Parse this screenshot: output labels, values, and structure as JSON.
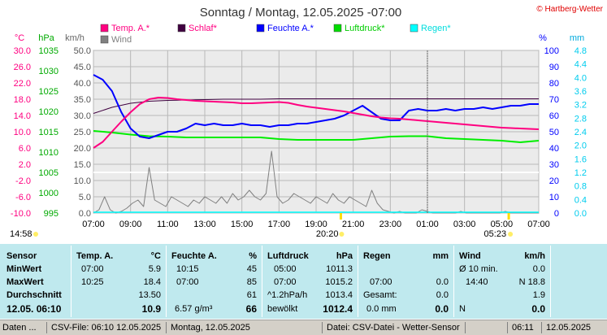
{
  "title": "Sonntag / Montag, 12.05.2025  -07:00",
  "copyright": "© Hartberg-Wetter",
  "colors": {
    "temp": "#ff0080",
    "schlaf": "#000000",
    "feuchte": "#0000ff",
    "luftdruck": "#00ee00",
    "regen": "#00ffff",
    "wind": "#808080",
    "hpa_axis": "#00aa00",
    "temp_axis": "#ff0080"
  },
  "units": {
    "temp": "°C",
    "hpa": "hPa",
    "kmh": "km/h",
    "pct": "%",
    "mm": "mm"
  },
  "legend": [
    {
      "label": "Temp. A.*",
      "color": "#ff0080"
    },
    {
      "label": "Schlaf*",
      "color": "#400040"
    },
    {
      "label": "Feuchte A.*",
      "color": "#0000ff"
    },
    {
      "label": "Luftdruck*",
      "color": "#00dd00"
    },
    {
      "label": "Regen*",
      "color": "#00ffff"
    },
    {
      "label": "Wind",
      "color": "#808080"
    }
  ],
  "axes": {
    "temp_ticks": [
      "30.0",
      "26.0",
      "22.0",
      "18.0",
      "14.0",
      "10.0",
      "6.0",
      "2.0",
      "-2.0",
      "-6.0",
      "-10.0"
    ],
    "hpa_ticks": [
      "1035",
      "1030",
      "1025",
      "1020",
      "1015",
      "1010",
      "1005",
      "1000",
      "995"
    ],
    "kmh_ticks": [
      "50.0",
      "45.0",
      "40.0",
      "35.0",
      "30.0",
      "25.0",
      "20.0",
      "15.0",
      "10.0",
      "5.0",
      "0.0"
    ],
    "pct_ticks": [
      "100",
      "90",
      "80",
      "70",
      "60",
      "50",
      "40",
      "30",
      "20",
      "10",
      "0"
    ],
    "mm_ticks": [
      "4.8",
      "4.4",
      "4.0",
      "3.6",
      "3.2",
      "2.8",
      "2.4",
      "2.0",
      "1.6",
      "1.2",
      "0.8",
      "0.4",
      "0.0"
    ],
    "time_ticks": [
      "07:00",
      "09:00",
      "11:00",
      "13:00",
      "15:00",
      "17:00",
      "19:00",
      "21:00",
      "23:00",
      "01:00",
      "03:00",
      "05:00",
      "07:00"
    ],
    "sunset": "20:20",
    "sunrise": "05:23",
    "moon": "14:58"
  },
  "chart_data": {
    "type": "line",
    "x_unit": "hours since 07:00",
    "xlim": [
      0,
      24
    ],
    "series": [
      {
        "name": "Temp. A.*",
        "unit": "°C",
        "axis": "temp",
        "x": [
          0,
          0.5,
          1,
          1.5,
          2,
          2.5,
          3,
          3.5,
          4,
          4.5,
          5,
          5.5,
          6,
          6.5,
          7,
          7.5,
          8,
          8.5,
          9,
          9.5,
          10,
          10.5,
          11,
          11.5,
          12,
          12.5,
          13,
          13.5,
          14,
          14.5,
          15,
          15.5,
          16,
          16.5,
          17,
          17.5,
          18,
          18.5,
          19,
          19.5,
          20,
          20.5,
          21,
          21.5,
          22,
          22.5,
          23,
          23.5,
          24
        ],
        "y": [
          6,
          7.5,
          10,
          12.5,
          14.8,
          16.8,
          18,
          18.4,
          18.3,
          18,
          17.8,
          17.6,
          17.5,
          17.4,
          17.3,
          17.2,
          17,
          17,
          17.1,
          17.2,
          17.3,
          17.1,
          16.6,
          16.2,
          15.9,
          15.6,
          15.3,
          15,
          14.6,
          14.2,
          13.8,
          13.5,
          13.3,
          13.2,
          13,
          12.8,
          12.6,
          12.4,
          12.2,
          12.0,
          11.8,
          11.6,
          11.4,
          11.2,
          11.0,
          10.9,
          10.8,
          10.7,
          10.6
        ]
      },
      {
        "name": "Schlaf*",
        "unit": "°C",
        "axis": "temp",
        "x": [
          0,
          1,
          2,
          3,
          4,
          5,
          6,
          7,
          8,
          9,
          10,
          11,
          12,
          13,
          14,
          15,
          16,
          17,
          18,
          19,
          20,
          21,
          22,
          23,
          24
        ],
        "y": [
          14.5,
          16,
          17,
          17.5,
          17.7,
          17.8,
          17.9,
          18,
          18,
          18,
          18.1,
          18.1,
          18.1,
          18.1,
          18.1,
          18.1,
          18.1,
          18.1,
          18.1,
          18.1,
          18.1,
          18.1,
          18.1,
          18.1,
          18.1
        ]
      },
      {
        "name": "Feuchte A.*",
        "unit": "%",
        "axis": "pct",
        "x": [
          0,
          0.5,
          1,
          1.5,
          2,
          2.5,
          3,
          3.5,
          4,
          4.5,
          5,
          5.5,
          6,
          6.5,
          7,
          7.5,
          8,
          8.5,
          9,
          9.5,
          10,
          10.5,
          11,
          11.5,
          12,
          12.5,
          13,
          13.5,
          14,
          14.5,
          15,
          15.5,
          16,
          16.5,
          17,
          17.5,
          18,
          18.5,
          19,
          19.5,
          20,
          20.5,
          21,
          21.5,
          22,
          22.5,
          23,
          23.5,
          24
        ],
        "y": [
          85,
          82,
          75,
          62,
          52,
          47,
          46,
          48,
          50,
          50,
          52,
          55,
          54,
          55,
          54,
          54,
          55,
          54,
          54,
          53,
          54,
          54,
          55,
          55,
          56,
          57,
          58,
          60,
          63,
          66,
          62,
          58,
          57,
          57,
          63,
          64,
          63,
          63,
          64,
          63,
          64,
          64,
          65,
          64,
          65,
          66,
          66,
          67,
          67
        ]
      },
      {
        "name": "Luftdruck*",
        "unit": "hPa",
        "axis": "hpa",
        "x": [
          0,
          1,
          2,
          3,
          4,
          5,
          6,
          7,
          8,
          9,
          10,
          11,
          12,
          13,
          14,
          15,
          16,
          17,
          18,
          19,
          20,
          21,
          22,
          23,
          24
        ],
        "y": [
          1015.2,
          1014.8,
          1014.3,
          1013.9,
          1013.8,
          1013.6,
          1013.6,
          1013.6,
          1013.6,
          1013.6,
          1013.2,
          1013,
          1013,
          1013,
          1013,
          1013.4,
          1013.8,
          1013.9,
          1013.9,
          1013.4,
          1013.2,
          1013,
          1012.8,
          1012.4,
          1012.8
        ]
      },
      {
        "name": "Wind",
        "unit": "km/h",
        "axis": "kmh",
        "x": [
          0,
          0.3,
          0.6,
          0.9,
          1.2,
          1.5,
          1.8,
          2.1,
          2.4,
          2.7,
          3,
          3.3,
          3.6,
          3.9,
          4.2,
          4.5,
          4.8,
          5.1,
          5.4,
          5.7,
          6,
          6.3,
          6.6,
          6.9,
          7.2,
          7.5,
          7.8,
          8.1,
          8.4,
          8.7,
          9,
          9.3,
          9.6,
          9.9,
          10.2,
          10.5,
          10.8,
          11.1,
          11.4,
          11.7,
          12,
          12.3,
          12.6,
          12.9,
          13.2,
          13.5,
          13.8,
          14.1,
          14.4,
          14.7,
          15,
          15.3,
          15.6,
          15.9,
          16.2,
          16.5,
          16.8,
          17.1,
          17.4,
          17.7,
          18,
          18.3,
          18.6,
          18.9,
          19.2,
          19.5,
          19.8,
          20.1,
          20.4,
          20.7,
          21,
          21.3,
          21.6,
          21.9,
          22.2,
          22.5,
          22.8,
          23.1,
          23.4,
          23.7,
          24
        ],
        "y": [
          0,
          1,
          5,
          1,
          0,
          0.5,
          1.5,
          3,
          4,
          2,
          14,
          4,
          3,
          2,
          5,
          4,
          3,
          2,
          4,
          3,
          5,
          4,
          3,
          5,
          3,
          6,
          4,
          5,
          7,
          5,
          4,
          6,
          19,
          5,
          3,
          4,
          6,
          5,
          4,
          3,
          5,
          4,
          3,
          6,
          4,
          3,
          5,
          4,
          3,
          2,
          7,
          3,
          1,
          0.5,
          0,
          0.5,
          0,
          0,
          0,
          1,
          0.5,
          0,
          0,
          0,
          0,
          0,
          0.5,
          0,
          0,
          0,
          0,
          0,
          0,
          0,
          0.5,
          0,
          0,
          0,
          0,
          0,
          0
        ]
      }
    ]
  },
  "table": {
    "sensor": {
      "header": "Sensor",
      "rows": [
        "MinWert",
        "MaxWert",
        "Durchschnitt"
      ],
      "footer": "12.05. 06:10"
    },
    "temp": {
      "header": "Temp. A.",
      "unit": "°C",
      "min_time": "07:00",
      "min": "5.9",
      "max_time": "10:25",
      "max": "18.4",
      "avg": "13.50",
      "current": "10.9"
    },
    "feuchte": {
      "header": "Feuchte A.",
      "unit": "%",
      "min_time": "10:15",
      "min": "45",
      "max_time": "07:00",
      "max": "85",
      "avg": "61",
      "extra": "6.57 g/m³",
      "current": "66"
    },
    "luftdruck": {
      "header": "Luftdruck",
      "unit": "hPa",
      "min_time": "05:00",
      "min": "1011.3",
      "max_time": "07:00",
      "max": "1015.2",
      "trend": "^1.2hPa/h",
      "avg": "1013.4",
      "sky": "bewölkt",
      "current": "1012.4"
    },
    "regen": {
      "header": "Regen",
      "unit": "mm",
      "r1_label": "07:00",
      "r1": "0.0",
      "gesamt_label": "Gesamt:",
      "gesamt": "0.0",
      "current_label": "0.0 mm",
      "current": "0.0"
    },
    "wind": {
      "header": "Wind",
      "unit": "km/h",
      "r0_label": "Ø 10 min.",
      "r0": "0.0",
      "r1_label": "14:40",
      "r1": "N 18.8",
      "r2": "1.9",
      "dir": "N",
      "current": "0.0"
    }
  },
  "statusbar": {
    "date": "Daten ...",
    "csv": "CSV-File:  06:10  12.05.2025",
    "day": "Montag, 12.05.2025",
    "source": "Datei: CSV-Datei - Wetter-Sensor",
    "time": "06:11",
    "date2": "12.05.2025"
  }
}
